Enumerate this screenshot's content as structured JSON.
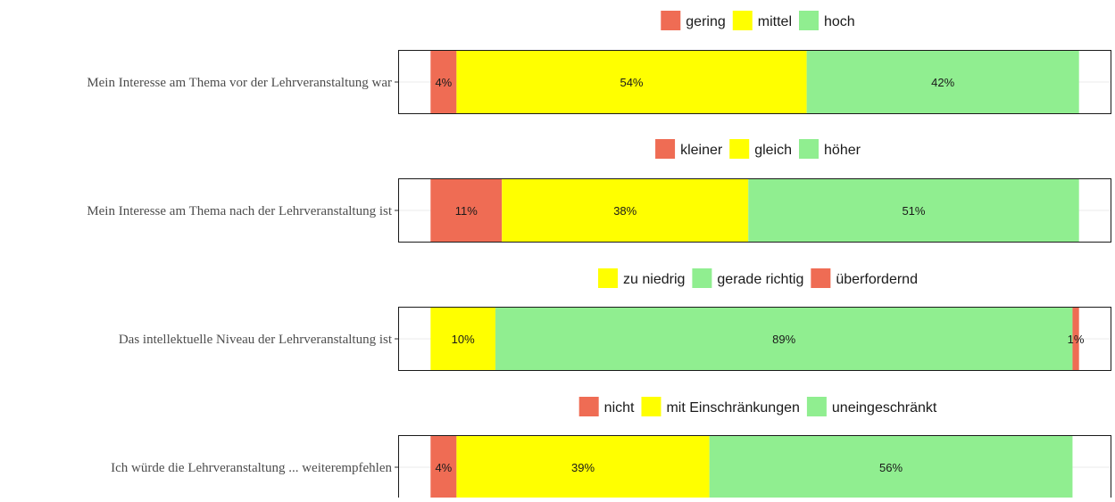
{
  "chart_data": [
    {
      "type": "bar",
      "orientation": "horizontal",
      "stacked": true,
      "category": "Mein Interesse am Thema vor der Lehrveranstaltung war",
      "series": [
        {
          "name": "gering",
          "value": 4,
          "label": "4%",
          "color": "#ef6c54"
        },
        {
          "name": "mittel",
          "value": 54,
          "label": "54%",
          "color": "#ffff00"
        },
        {
          "name": "hoch",
          "value": 42,
          "label": "42%",
          "color": "#90ee90"
        }
      ],
      "xlim": [
        -5,
        105
      ],
      "legend": "top"
    },
    {
      "type": "bar",
      "orientation": "horizontal",
      "stacked": true,
      "category": "Mein Interesse am Thema nach der Lehrveranstaltung ist",
      "series": [
        {
          "name": "kleiner",
          "value": 11,
          "label": "11%",
          "color": "#ef6c54"
        },
        {
          "name": "gleich",
          "value": 38,
          "label": "38%",
          "color": "#ffff00"
        },
        {
          "name": "höher",
          "value": 51,
          "label": "51%",
          "color": "#90ee90"
        }
      ],
      "xlim": [
        -5,
        105
      ],
      "legend": "top"
    },
    {
      "type": "bar",
      "orientation": "horizontal",
      "stacked": true,
      "category": "Das intellektuelle Niveau der Lehrveranstaltung ist",
      "series": [
        {
          "name": "zu niedrig",
          "value": 10,
          "label": "10%",
          "color": "#ffff00"
        },
        {
          "name": "gerade richtig",
          "value": 89,
          "label": "89%",
          "color": "#90ee90"
        },
        {
          "name": "überfordernd",
          "value": 1,
          "label": "1%",
          "color": "#ef6c54"
        }
      ],
      "xlim": [
        -5,
        105
      ],
      "legend": "top"
    },
    {
      "type": "bar",
      "orientation": "horizontal",
      "stacked": true,
      "category": "Ich würde die Lehrveranstaltung ... weiterempfehlen",
      "series": [
        {
          "name": "nicht",
          "value": 4,
          "label": "4%",
          "color": "#ef6c54"
        },
        {
          "name": "mit Einschränkungen",
          "value": 39,
          "label": "39%",
          "color": "#ffff00"
        },
        {
          "name": "uneingeschränkt",
          "value": 56,
          "label": "56%",
          "color": "#90ee90"
        }
      ],
      "xlim": [
        -5,
        105
      ],
      "legend": "top"
    }
  ]
}
